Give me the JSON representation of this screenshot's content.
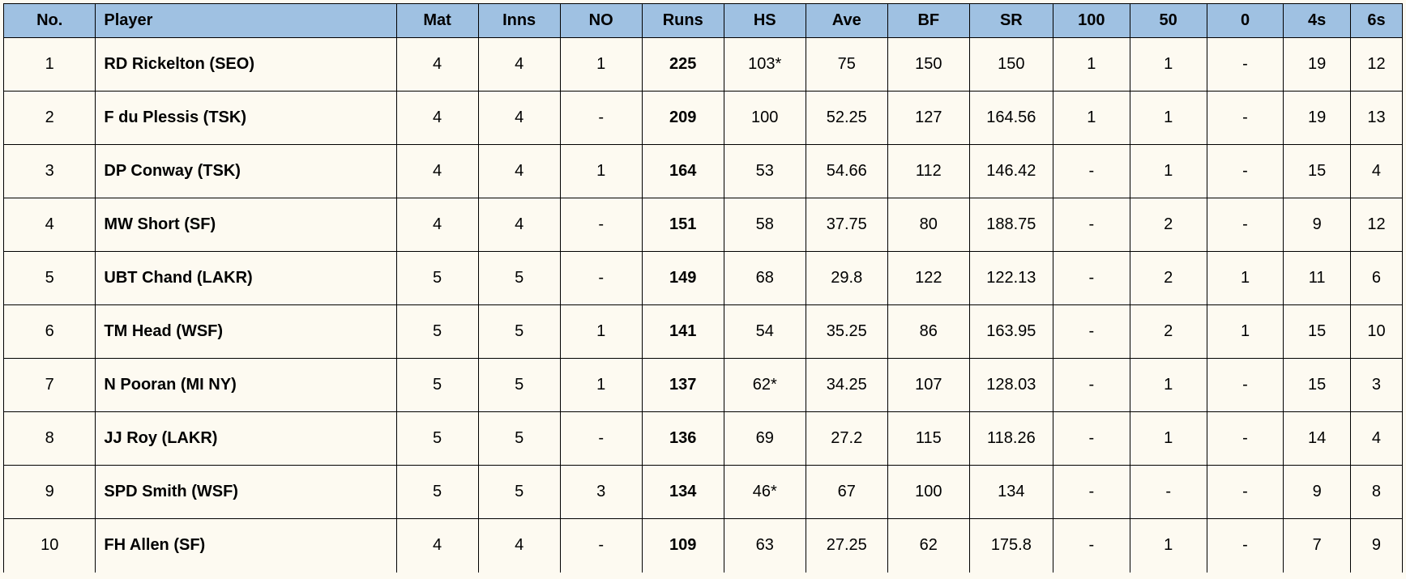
{
  "table": {
    "header_bg": "#9fc1e2",
    "background": "#fdfaf1",
    "border_color": "#000000",
    "font_family": "Arial",
    "columns": [
      {
        "key": "no",
        "label": "No.",
        "class": "col-no",
        "align": "center",
        "bold": false
      },
      {
        "key": "player",
        "label": "Player",
        "class": "col-player",
        "align": "left",
        "bold": true
      },
      {
        "key": "mat",
        "label": "Mat",
        "class": "col-mat",
        "align": "center",
        "bold": false
      },
      {
        "key": "inns",
        "label": "Inns",
        "class": "col-inns",
        "align": "center",
        "bold": false
      },
      {
        "key": "not_out",
        "label": "NO",
        "class": "col-no2",
        "align": "center",
        "bold": false
      },
      {
        "key": "runs",
        "label": "Runs",
        "class": "col-runs",
        "align": "center",
        "bold": true
      },
      {
        "key": "hs",
        "label": "HS",
        "class": "col-hs",
        "align": "center",
        "bold": false
      },
      {
        "key": "ave",
        "label": "Ave",
        "class": "col-ave",
        "align": "center",
        "bold": false
      },
      {
        "key": "bf",
        "label": "BF",
        "class": "col-bf",
        "align": "center",
        "bold": false
      },
      {
        "key": "sr",
        "label": "SR",
        "class": "col-sr",
        "align": "center",
        "bold": false
      },
      {
        "key": "c100",
        "label": "100",
        "class": "col-100",
        "align": "center",
        "bold": false
      },
      {
        "key": "c50",
        "label": "50",
        "class": "col-50",
        "align": "center",
        "bold": false
      },
      {
        "key": "c0",
        "label": "0",
        "class": "col-0",
        "align": "center",
        "bold": false
      },
      {
        "key": "c4s",
        "label": "4s",
        "class": "col-4s",
        "align": "center",
        "bold": false
      },
      {
        "key": "c6s",
        "label": "6s",
        "class": "col-6s",
        "align": "center",
        "bold": false
      }
    ],
    "rows": [
      {
        "no": "1",
        "player": "RD Rickelton (SEO)",
        "mat": "4",
        "inns": "4",
        "not_out": "1",
        "runs": "225",
        "hs": "103*",
        "ave": "75",
        "bf": "150",
        "sr": "150",
        "c100": "1",
        "c50": "1",
        "c0": "-",
        "c4s": "19",
        "c6s": "12"
      },
      {
        "no": "2",
        "player": "F du Plessis (TSK)",
        "mat": "4",
        "inns": "4",
        "not_out": "-",
        "runs": "209",
        "hs": "100",
        "ave": "52.25",
        "bf": "127",
        "sr": "164.56",
        "c100": "1",
        "c50": "1",
        "c0": "-",
        "c4s": "19",
        "c6s": "13"
      },
      {
        "no": "3",
        "player": "DP Conway (TSK)",
        "mat": "4",
        "inns": "4",
        "not_out": "1",
        "runs": "164",
        "hs": "53",
        "ave": "54.66",
        "bf": "112",
        "sr": "146.42",
        "c100": "-",
        "c50": "1",
        "c0": "-",
        "c4s": "15",
        "c6s": "4"
      },
      {
        "no": "4",
        "player": "MW Short (SF)",
        "mat": "4",
        "inns": "4",
        "not_out": "-",
        "runs": "151",
        "hs": "58",
        "ave": "37.75",
        "bf": "80",
        "sr": "188.75",
        "c100": "-",
        "c50": "2",
        "c0": "-",
        "c4s": "9",
        "c6s": "12"
      },
      {
        "no": "5",
        "player": "UBT Chand (LAKR)",
        "mat": "5",
        "inns": "5",
        "not_out": "-",
        "runs": "149",
        "hs": "68",
        "ave": "29.8",
        "bf": "122",
        "sr": "122.13",
        "c100": "-",
        "c50": "2",
        "c0": "1",
        "c4s": "11",
        "c6s": "6"
      },
      {
        "no": "6",
        "player": "TM Head (WSF)",
        "mat": "5",
        "inns": "5",
        "not_out": "1",
        "runs": "141",
        "hs": "54",
        "ave": "35.25",
        "bf": "86",
        "sr": "163.95",
        "c100": "-",
        "c50": "2",
        "c0": "1",
        "c4s": "15",
        "c6s": "10"
      },
      {
        "no": "7",
        "player": "N Pooran (MI NY)",
        "mat": "5",
        "inns": "5",
        "not_out": "1",
        "runs": "137",
        "hs": "62*",
        "ave": "34.25",
        "bf": "107",
        "sr": "128.03",
        "c100": "-",
        "c50": "1",
        "c0": "-",
        "c4s": "15",
        "c6s": "3"
      },
      {
        "no": "8",
        "player": "JJ Roy (LAKR)",
        "mat": "5",
        "inns": "5",
        "not_out": "-",
        "runs": "136",
        "hs": "69",
        "ave": "27.2",
        "bf": "115",
        "sr": "118.26",
        "c100": "-",
        "c50": "1",
        "c0": "-",
        "c4s": "14",
        "c6s": "4"
      },
      {
        "no": "9",
        "player": "SPD Smith (WSF)",
        "mat": "5",
        "inns": "5",
        "not_out": "3",
        "runs": "134",
        "hs": "46*",
        "ave": "67",
        "bf": "100",
        "sr": "134",
        "c100": "-",
        "c50": "-",
        "c0": "-",
        "c4s": "9",
        "c6s": "8"
      },
      {
        "no": "10",
        "player": "FH Allen (SF)",
        "mat": "4",
        "inns": "4",
        "not_out": "-",
        "runs": "109",
        "hs": "63",
        "ave": "27.25",
        "bf": "62",
        "sr": "175.8",
        "c100": "-",
        "c50": "1",
        "c0": "-",
        "c4s": "7",
        "c6s": "9"
      }
    ]
  }
}
